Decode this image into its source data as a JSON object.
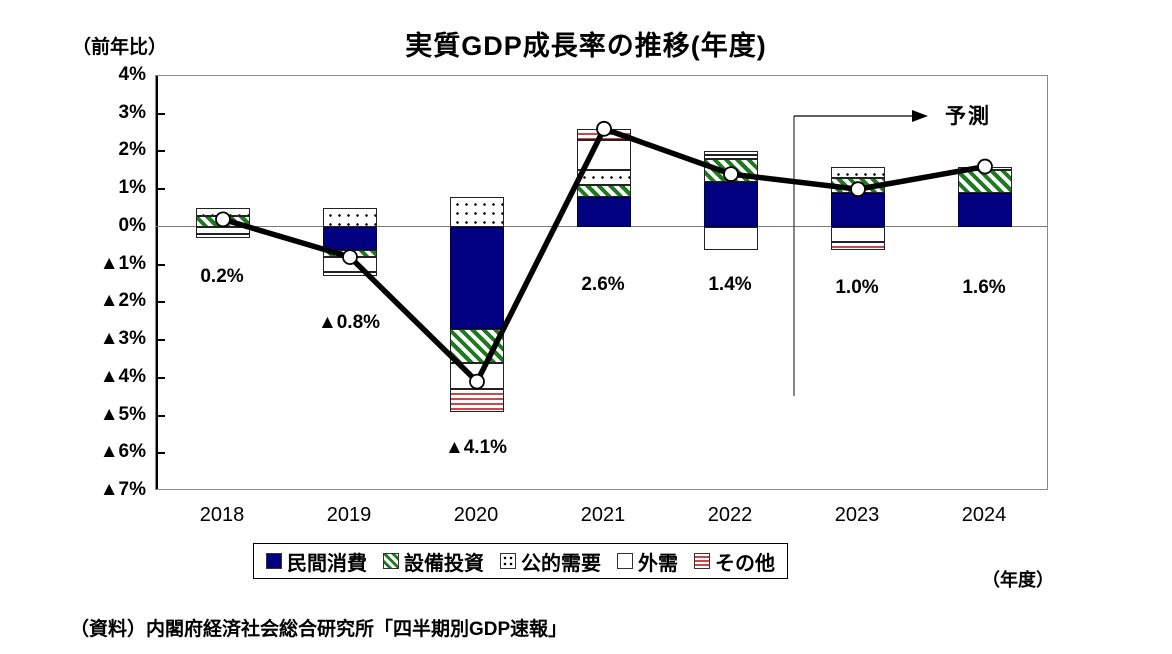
{
  "page": {
    "title": "実質GDP成長率の推移(年度)",
    "y_axis_unit_label": "（前年比）",
    "x_axis_unit_label": "（年度）",
    "forecast_label": "予測",
    "source": "（資料）内閣府経済社会総合研究所「四半期別GDP速報」"
  },
  "chart_data": {
    "type": "bar",
    "subtype": "stacked-bar-with-line",
    "title": "実質GDP成長率の推移(年度)",
    "xlabel": "年度",
    "ylabel": "前年比",
    "ylim": [
      -7,
      4
    ],
    "grid": "zero-line-only",
    "legend_position": "bottom",
    "categories": [
      "2018",
      "2019",
      "2020",
      "2021",
      "2022",
      "2023",
      "2024"
    ],
    "y_ticks": [
      "4%",
      "3%",
      "2%",
      "1%",
      "0%",
      "▲1%",
      "▲2%",
      "▲3%",
      "▲4%",
      "▲5%",
      "▲6%",
      "▲7%"
    ],
    "series": [
      {
        "name": "民間消費",
        "pattern": "solid-navy",
        "color": "#000080",
        "values": [
          0.0,
          -0.6,
          -2.7,
          0.8,
          1.2,
          0.9,
          0.9
        ]
      },
      {
        "name": "設備投資",
        "pattern": "green-diagonal-hatch",
        "color": "#1e7a1e",
        "values": [
          0.3,
          -0.2,
          -0.9,
          0.3,
          0.6,
          0.4,
          0.6
        ]
      },
      {
        "name": "公的需要",
        "pattern": "black-dots",
        "color": "#000000",
        "values": [
          0.2,
          0.5,
          0.8,
          0.4,
          0.1,
          0.3,
          0.1
        ]
      },
      {
        "name": "外需",
        "pattern": "white",
        "color": "#ffffff",
        "values": [
          -0.2,
          -0.4,
          -0.7,
          0.8,
          -0.6,
          -0.4,
          0.0
        ]
      },
      {
        "name": "その他",
        "pattern": "red-horizontal-stripes",
        "color": "#cc4747",
        "values": [
          -0.1,
          -0.1,
          -0.6,
          0.3,
          0.1,
          -0.2,
          0.0
        ]
      }
    ],
    "line": {
      "name": "実質GDP成長率",
      "values": [
        0.2,
        -0.8,
        -4.1,
        2.6,
        1.4,
        1.0,
        1.6
      ],
      "color": "#000000",
      "marker": "white-circle"
    },
    "value_labels": [
      "0.2%",
      "▲0.8%",
      "▲4.1%",
      "2.6%",
      "1.4%",
      "1.0%",
      "1.6%"
    ],
    "forecast_note": {
      "label": "予測",
      "applies_from_category": "2023"
    }
  }
}
